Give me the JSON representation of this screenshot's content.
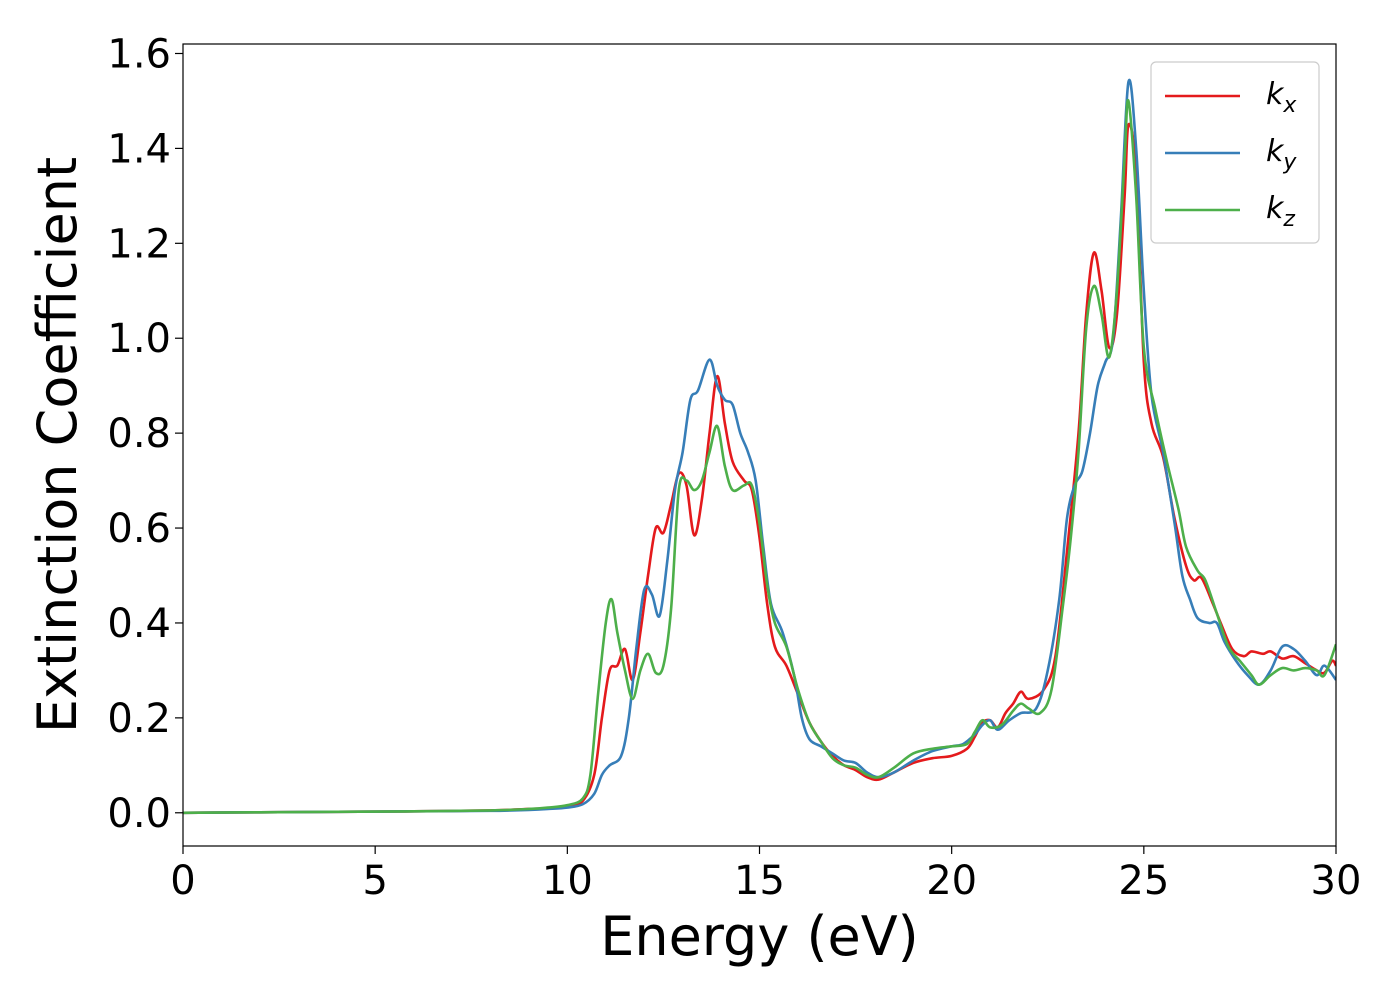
{
  "chart_data": {
    "type": "line",
    "title": "",
    "xlabel": "Energy (eV)",
    "ylabel": "Extinction Coefficient",
    "xlim": [
      0,
      30
    ],
    "ylim": [
      -0.07,
      1.62
    ],
    "xticks": [
      0,
      5,
      10,
      15,
      20,
      25,
      30
    ],
    "yticks": [
      0.0,
      0.2,
      0.4,
      0.6,
      0.8,
      1.0,
      1.2,
      1.4,
      1.6
    ],
    "xtick_labels": [
      "0",
      "5",
      "10",
      "15",
      "20",
      "25",
      "30"
    ],
    "ytick_labels": [
      "0.0",
      "0.2",
      "0.4",
      "0.6",
      "0.8",
      "1.0",
      "1.2",
      "1.4",
      "1.6"
    ],
    "grid": false,
    "legend_position": "top-right",
    "series": [
      {
        "name": "k",
        "subscript": "x",
        "color": "#e41a1c",
        "points": [
          [
            0,
            0
          ],
          [
            2,
            0.001
          ],
          [
            4,
            0.002
          ],
          [
            6,
            0.003
          ],
          [
            8,
            0.005
          ],
          [
            9,
            0.008
          ],
          [
            9.5,
            0.01
          ],
          [
            10,
            0.014
          ],
          [
            10.4,
            0.025
          ],
          [
            10.7,
            0.08
          ],
          [
            10.9,
            0.2
          ],
          [
            11.1,
            0.3
          ],
          [
            11.3,
            0.31
          ],
          [
            11.5,
            0.345
          ],
          [
            11.7,
            0.28
          ],
          [
            11.9,
            0.38
          ],
          [
            12.1,
            0.5
          ],
          [
            12.3,
            0.6
          ],
          [
            12.5,
            0.59
          ],
          [
            12.7,
            0.65
          ],
          [
            12.9,
            0.715
          ],
          [
            13.1,
            0.69
          ],
          [
            13.3,
            0.585
          ],
          [
            13.5,
            0.66
          ],
          [
            13.7,
            0.8
          ],
          [
            13.9,
            0.92
          ],
          [
            14.1,
            0.82
          ],
          [
            14.3,
            0.74
          ],
          [
            14.6,
            0.7
          ],
          [
            14.8,
            0.68
          ],
          [
            15.0,
            0.58
          ],
          [
            15.2,
            0.44
          ],
          [
            15.4,
            0.35
          ],
          [
            15.7,
            0.31
          ],
          [
            16.0,
            0.25
          ],
          [
            16.3,
            0.19
          ],
          [
            16.6,
            0.15
          ],
          [
            16.9,
            0.12
          ],
          [
            17.2,
            0.1
          ],
          [
            17.5,
            0.09
          ],
          [
            17.8,
            0.075
          ],
          [
            18.1,
            0.07
          ],
          [
            18.5,
            0.085
          ],
          [
            19.0,
            0.105
          ],
          [
            19.5,
            0.115
          ],
          [
            20.0,
            0.12
          ],
          [
            20.4,
            0.135
          ],
          [
            20.6,
            0.16
          ],
          [
            20.8,
            0.19
          ],
          [
            21.0,
            0.195
          ],
          [
            21.2,
            0.18
          ],
          [
            21.4,
            0.21
          ],
          [
            21.6,
            0.23
          ],
          [
            21.8,
            0.255
          ],
          [
            22.0,
            0.24
          ],
          [
            22.4,
            0.26
          ],
          [
            22.7,
            0.33
          ],
          [
            23.0,
            0.55
          ],
          [
            23.3,
            0.8
          ],
          [
            23.5,
            1.05
          ],
          [
            23.7,
            1.18
          ],
          [
            23.9,
            1.1
          ],
          [
            24.1,
            0.98
          ],
          [
            24.3,
            1.05
          ],
          [
            24.5,
            1.3
          ],
          [
            24.6,
            1.45
          ],
          [
            24.8,
            1.35
          ],
          [
            25.0,
            0.95
          ],
          [
            25.2,
            0.82
          ],
          [
            25.5,
            0.75
          ],
          [
            25.8,
            0.62
          ],
          [
            26.1,
            0.52
          ],
          [
            26.3,
            0.49
          ],
          [
            26.5,
            0.495
          ],
          [
            26.8,
            0.44
          ],
          [
            27.0,
            0.4
          ],
          [
            27.3,
            0.345
          ],
          [
            27.6,
            0.33
          ],
          [
            27.8,
            0.34
          ],
          [
            28.1,
            0.335
          ],
          [
            28.3,
            0.34
          ],
          [
            28.6,
            0.325
          ],
          [
            28.9,
            0.33
          ],
          [
            29.2,
            0.315
          ],
          [
            29.5,
            0.3
          ],
          [
            29.7,
            0.295
          ],
          [
            29.9,
            0.32
          ],
          [
            30.0,
            0.31
          ]
        ]
      },
      {
        "name": "k",
        "subscript": "y",
        "color": "#377eb8",
        "points": [
          [
            0,
            0
          ],
          [
            2,
            0.001
          ],
          [
            4,
            0.002
          ],
          [
            6,
            0.003
          ],
          [
            8,
            0.004
          ],
          [
            9,
            0.006
          ],
          [
            9.5,
            0.008
          ],
          [
            10,
            0.011
          ],
          [
            10.4,
            0.018
          ],
          [
            10.7,
            0.04
          ],
          [
            10.9,
            0.08
          ],
          [
            11.1,
            0.1
          ],
          [
            11.4,
            0.12
          ],
          [
            11.6,
            0.2
          ],
          [
            11.8,
            0.35
          ],
          [
            12.0,
            0.47
          ],
          [
            12.2,
            0.46
          ],
          [
            12.4,
            0.415
          ],
          [
            12.6,
            0.53
          ],
          [
            12.8,
            0.68
          ],
          [
            13.0,
            0.76
          ],
          [
            13.2,
            0.87
          ],
          [
            13.4,
            0.89
          ],
          [
            13.7,
            0.955
          ],
          [
            13.9,
            0.9
          ],
          [
            14.1,
            0.87
          ],
          [
            14.3,
            0.86
          ],
          [
            14.5,
            0.8
          ],
          [
            14.7,
            0.76
          ],
          [
            14.9,
            0.7
          ],
          [
            15.1,
            0.56
          ],
          [
            15.3,
            0.44
          ],
          [
            15.6,
            0.38
          ],
          [
            15.9,
            0.29
          ],
          [
            16.1,
            0.2
          ],
          [
            16.3,
            0.155
          ],
          [
            16.6,
            0.14
          ],
          [
            16.9,
            0.125
          ],
          [
            17.2,
            0.11
          ],
          [
            17.5,
            0.105
          ],
          [
            17.8,
            0.085
          ],
          [
            18.1,
            0.075
          ],
          [
            18.5,
            0.085
          ],
          [
            19.0,
            0.11
          ],
          [
            19.5,
            0.13
          ],
          [
            20.0,
            0.14
          ],
          [
            20.3,
            0.145
          ],
          [
            20.6,
            0.165
          ],
          [
            20.8,
            0.185
          ],
          [
            21.0,
            0.195
          ],
          [
            21.2,
            0.175
          ],
          [
            21.5,
            0.195
          ],
          [
            21.8,
            0.21
          ],
          [
            22.2,
            0.22
          ],
          [
            22.5,
            0.3
          ],
          [
            22.8,
            0.45
          ],
          [
            23.0,
            0.62
          ],
          [
            23.2,
            0.69
          ],
          [
            23.4,
            0.72
          ],
          [
            23.6,
            0.8
          ],
          [
            23.8,
            0.9
          ],
          [
            24.0,
            0.95
          ],
          [
            24.2,
            1.0
          ],
          [
            24.4,
            1.25
          ],
          [
            24.6,
            1.54
          ],
          [
            24.8,
            1.4
          ],
          [
            25.0,
            1.1
          ],
          [
            25.2,
            0.88
          ],
          [
            25.5,
            0.76
          ],
          [
            25.8,
            0.61
          ],
          [
            26.0,
            0.5
          ],
          [
            26.2,
            0.45
          ],
          [
            26.4,
            0.41
          ],
          [
            26.7,
            0.4
          ],
          [
            26.9,
            0.4
          ],
          [
            27.1,
            0.36
          ],
          [
            27.4,
            0.32
          ],
          [
            27.7,
            0.29
          ],
          [
            28.0,
            0.27
          ],
          [
            28.3,
            0.3
          ],
          [
            28.6,
            0.35
          ],
          [
            28.9,
            0.345
          ],
          [
            29.2,
            0.32
          ],
          [
            29.5,
            0.29
          ],
          [
            29.7,
            0.31
          ],
          [
            30.0,
            0.28
          ]
        ]
      },
      {
        "name": "k",
        "subscript": "z",
        "color": "#4daf4a",
        "points": [
          [
            0,
            0
          ],
          [
            2,
            0.001
          ],
          [
            4,
            0.002
          ],
          [
            6,
            0.003
          ],
          [
            8,
            0.005
          ],
          [
            9,
            0.008
          ],
          [
            9.5,
            0.011
          ],
          [
            10,
            0.016
          ],
          [
            10.4,
            0.03
          ],
          [
            10.6,
            0.08
          ],
          [
            10.8,
            0.25
          ],
          [
            11.0,
            0.4
          ],
          [
            11.15,
            0.45
          ],
          [
            11.3,
            0.38
          ],
          [
            11.5,
            0.3
          ],
          [
            11.7,
            0.24
          ],
          [
            11.9,
            0.3
          ],
          [
            12.1,
            0.335
          ],
          [
            12.3,
            0.295
          ],
          [
            12.5,
            0.31
          ],
          [
            12.7,
            0.43
          ],
          [
            12.9,
            0.68
          ],
          [
            13.1,
            0.7
          ],
          [
            13.3,
            0.68
          ],
          [
            13.5,
            0.7
          ],
          [
            13.7,
            0.76
          ],
          [
            13.9,
            0.815
          ],
          [
            14.1,
            0.73
          ],
          [
            14.3,
            0.68
          ],
          [
            14.6,
            0.69
          ],
          [
            14.8,
            0.69
          ],
          [
            15.0,
            0.61
          ],
          [
            15.2,
            0.48
          ],
          [
            15.4,
            0.4
          ],
          [
            15.7,
            0.35
          ],
          [
            16.0,
            0.26
          ],
          [
            16.3,
            0.19
          ],
          [
            16.6,
            0.15
          ],
          [
            16.9,
            0.115
          ],
          [
            17.2,
            0.1
          ],
          [
            17.5,
            0.095
          ],
          [
            17.8,
            0.08
          ],
          [
            18.1,
            0.075
          ],
          [
            18.5,
            0.095
          ],
          [
            19.0,
            0.125
          ],
          [
            19.5,
            0.135
          ],
          [
            20.0,
            0.14
          ],
          [
            20.4,
            0.145
          ],
          [
            20.6,
            0.17
          ],
          [
            20.8,
            0.195
          ],
          [
            21.0,
            0.18
          ],
          [
            21.3,
            0.185
          ],
          [
            21.6,
            0.215
          ],
          [
            21.8,
            0.23
          ],
          [
            22.0,
            0.22
          ],
          [
            22.3,
            0.21
          ],
          [
            22.6,
            0.26
          ],
          [
            22.9,
            0.44
          ],
          [
            23.1,
            0.58
          ],
          [
            23.3,
            0.76
          ],
          [
            23.5,
            1.02
          ],
          [
            23.7,
            1.11
          ],
          [
            23.9,
            1.05
          ],
          [
            24.1,
            0.96
          ],
          [
            24.3,
            1.1
          ],
          [
            24.5,
            1.38
          ],
          [
            24.6,
            1.5
          ],
          [
            24.8,
            1.3
          ],
          [
            25.0,
            0.98
          ],
          [
            25.3,
            0.85
          ],
          [
            25.6,
            0.74
          ],
          [
            25.9,
            0.64
          ],
          [
            26.1,
            0.56
          ],
          [
            26.4,
            0.51
          ],
          [
            26.6,
            0.49
          ],
          [
            26.9,
            0.42
          ],
          [
            27.2,
            0.35
          ],
          [
            27.5,
            0.32
          ],
          [
            27.8,
            0.29
          ],
          [
            28.0,
            0.27
          ],
          [
            28.3,
            0.29
          ],
          [
            28.6,
            0.305
          ],
          [
            28.9,
            0.3
          ],
          [
            29.2,
            0.305
          ],
          [
            29.5,
            0.3
          ],
          [
            29.7,
            0.29
          ],
          [
            30.0,
            0.355
          ]
        ]
      }
    ]
  }
}
